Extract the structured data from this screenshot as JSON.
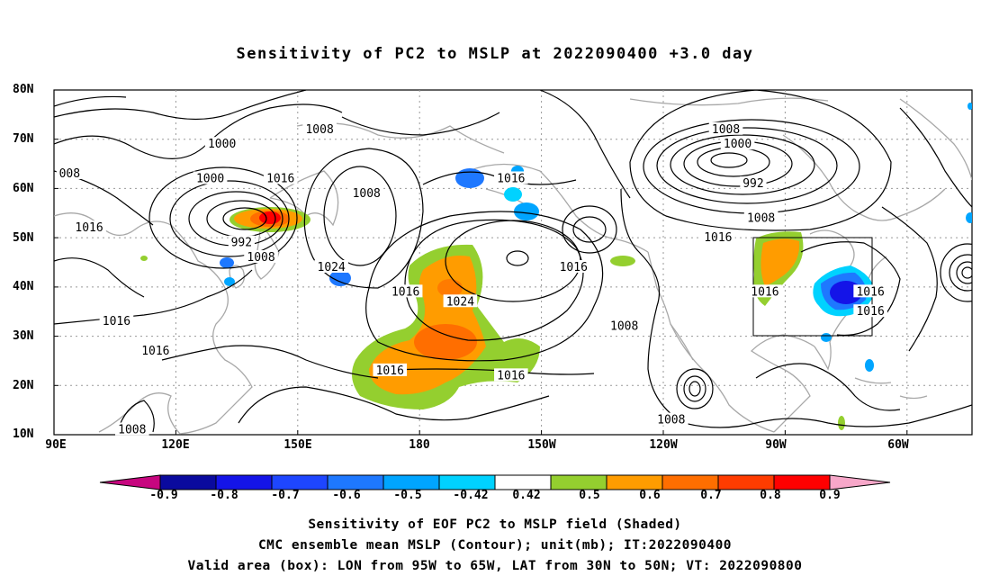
{
  "title": "Sensitivity of PC2 to MSLP at 2022090400 +3.0 day",
  "axes": {
    "lat_labels": [
      "80N",
      "70N",
      "60N",
      "50N",
      "40N",
      "30N",
      "20N",
      "10N"
    ],
    "lon_labels": [
      "90E",
      "120E",
      "150E",
      "180",
      "150W",
      "120W",
      "90W",
      "60W"
    ]
  },
  "contour_labels": [
    {
      "text": "1000",
      "lon": 133,
      "lat": 69
    },
    {
      "text": "1008",
      "lon": 158,
      "lat": 72
    },
    {
      "text": "008",
      "lon": 94,
      "lat": 63
    },
    {
      "text": "1000",
      "lon": 130,
      "lat": 62
    },
    {
      "text": "1016",
      "lon": 148,
      "lat": 62
    },
    {
      "text": "1016",
      "lon": 99,
      "lat": 52
    },
    {
      "text": "992",
      "lon": 138,
      "lat": 49
    },
    {
      "text": "1008",
      "lon": 143,
      "lat": 46
    },
    {
      "text": "1024",
      "lon": 161,
      "lat": 44
    },
    {
      "text": "1008",
      "lon": 170,
      "lat": 59
    },
    {
      "text": "1016",
      "lon": -153,
      "lat": 62
    },
    {
      "text": "1016",
      "lon": -180,
      "lat": 39
    },
    {
      "text": "1024",
      "lon": -166,
      "lat": 37
    },
    {
      "text": "1016",
      "lon": -137,
      "lat": 44
    },
    {
      "text": "1008",
      "lon": -124,
      "lat": 32
    },
    {
      "text": "1016",
      "lon": 106,
      "lat": 33
    },
    {
      "text": "1016",
      "lon": 116,
      "lat": 27
    },
    {
      "text": "1016",
      "lon": 176,
      "lat": 23
    },
    {
      "text": "1016",
      "lon": -153,
      "lat": 22
    },
    {
      "text": "1008",
      "lon": 110,
      "lat": 11
    },
    {
      "text": "1008",
      "lon": -112,
      "lat": 13
    },
    {
      "text": "1008",
      "lon": -98,
      "lat": 72
    },
    {
      "text": "1000",
      "lon": -95,
      "lat": 69
    },
    {
      "text": "992",
      "lon": -91,
      "lat": 61
    },
    {
      "text": "1008",
      "lon": -89,
      "lat": 54
    },
    {
      "text": "1016",
      "lon": -100,
      "lat": 50
    },
    {
      "text": "1016",
      "lon": -88,
      "lat": 39
    },
    {
      "text": "1016",
      "lon": -61,
      "lat": 39
    },
    {
      "text": "1016",
      "lon": -61,
      "lat": 35
    }
  ],
  "colorbar": {
    "labels": [
      "-0.9",
      "-0.8",
      "-0.7",
      "-0.6",
      "-0.5",
      "-0.42",
      "0.42",
      "0.5",
      "0.6",
      "0.7",
      "0.8",
      "0.9"
    ],
    "low_arrow_color": "#c7067f",
    "high_arrow_color": "#f7a7c9",
    "colors": [
      "#0a0a9e",
      "#1414e8",
      "#1e46ff",
      "#1e78ff",
      "#00a5ff",
      "#00d2ff",
      "#ffffff",
      "#94cf2f",
      "#ff9c00",
      "#ff6e00",
      "#ff3c00",
      "#ff0000"
    ]
  },
  "captions": [
    "Sensitivity of EOF PC2 to MSLP field (Shaded)",
    "CMC ensemble mean MSLP (Contour); unit(mb); IT:2022090400",
    "Valid area (box): LON from 95W to 65W, LAT from 30N to 50N; VT: 2022090800"
  ]
}
